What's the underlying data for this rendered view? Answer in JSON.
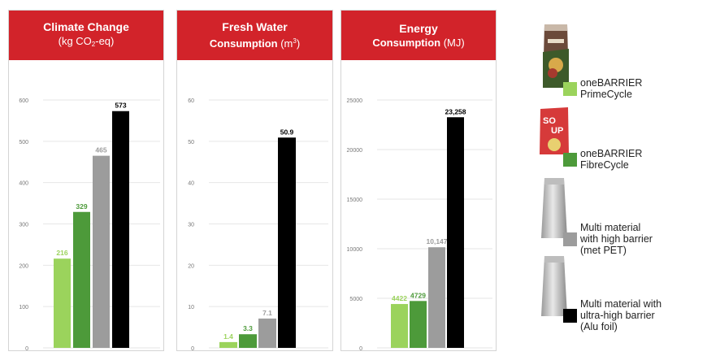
{
  "colors": {
    "header": "#d2232a",
    "grid": "#e6e6e6",
    "axis_text": "#777777",
    "series": [
      "#9bd35c",
      "#4d9a3a",
      "#9c9c9c",
      "#000000"
    ],
    "label_colors": [
      "#9bd35c",
      "#4d9a3a",
      "#9c9c9c",
      "#000000"
    ]
  },
  "panels": [
    {
      "title": "Climate Change",
      "unit_pre": "(kg CO",
      "unit_sub": "2",
      "unit_post": "-eq)"
    },
    {
      "title": "Fresh Water",
      "title2": "Consumption",
      "unit_pre": " (m",
      "unit_sup": "3",
      "unit_post": ")"
    },
    {
      "title": "Energy",
      "title2": "Consumption",
      "unit_pre": " (MJ)"
    }
  ],
  "legend": {
    "items": [
      {
        "label": "oneBARRIER\nPrimeCycle",
        "icon": "coffee-pouch-icon"
      },
      {
        "label": "oneBARRIER\nFibreCycle",
        "icon": "soup-pouch-icon"
      },
      {
        "label": "Multi material\nwith high barrier\n(met PET)",
        "icon": "silver-bag-icon"
      },
      {
        "label": "Multi material with\nultra-high barrier\n(Alu foil)",
        "icon": "silver-bag-icon"
      }
    ]
  },
  "chart_data": [
    {
      "type": "bar",
      "title": "Climate Change (kg CO2-eq)",
      "categories": [
        "oneBARRIER PrimeCycle",
        "oneBARRIER FibreCycle",
        "Multi material with high barrier (met PET)",
        "Multi material with ultra-high barrier (Alu foil)"
      ],
      "values": [
        216,
        329,
        465,
        573
      ],
      "value_labels": [
        "216",
        "329",
        "465",
        "573"
      ],
      "ylim": [
        0,
        600
      ],
      "yticks": [
        0,
        100,
        200,
        300,
        400,
        500,
        600
      ],
      "ytick_labels": [
        "0",
        "100",
        "200",
        "300",
        "400",
        "500",
        "600"
      ],
      "grid": true
    },
    {
      "type": "bar",
      "title": "Fresh Water Consumption (m3)",
      "categories": [
        "oneBARRIER PrimeCycle",
        "oneBARRIER FibreCycle",
        "Multi material with high barrier (met PET)",
        "Multi material with ultra-high barrier (Alu foil)"
      ],
      "values": [
        1.4,
        3.3,
        7.1,
        50.9
      ],
      "value_labels": [
        "1.4",
        "3.3",
        "7.1",
        "50.9"
      ],
      "ylim": [
        0,
        60
      ],
      "yticks": [
        0,
        10,
        20,
        30,
        40,
        50,
        60
      ],
      "ytick_labels": [
        "0",
        "10",
        "20",
        "30",
        "40",
        "50",
        "60"
      ],
      "grid": true
    },
    {
      "type": "bar",
      "title": "Energy Consumption (MJ)",
      "categories": [
        "oneBARRIER PrimeCycle",
        "oneBARRIER FibreCycle",
        "Multi material with high barrier (met PET)",
        "Multi material with ultra-high barrier (Alu foil)"
      ],
      "values": [
        4422,
        4729,
        10147,
        23258
      ],
      "value_labels": [
        "4422",
        "4729",
        "10,147",
        "23,258"
      ],
      "ylim": [
        0,
        25000
      ],
      "yticks": [
        0,
        5000,
        10000,
        15000,
        20000,
        25000
      ],
      "ytick_labels": [
        "0",
        "5000",
        "10000",
        "15000",
        "20000",
        "25000"
      ],
      "grid": true
    }
  ]
}
